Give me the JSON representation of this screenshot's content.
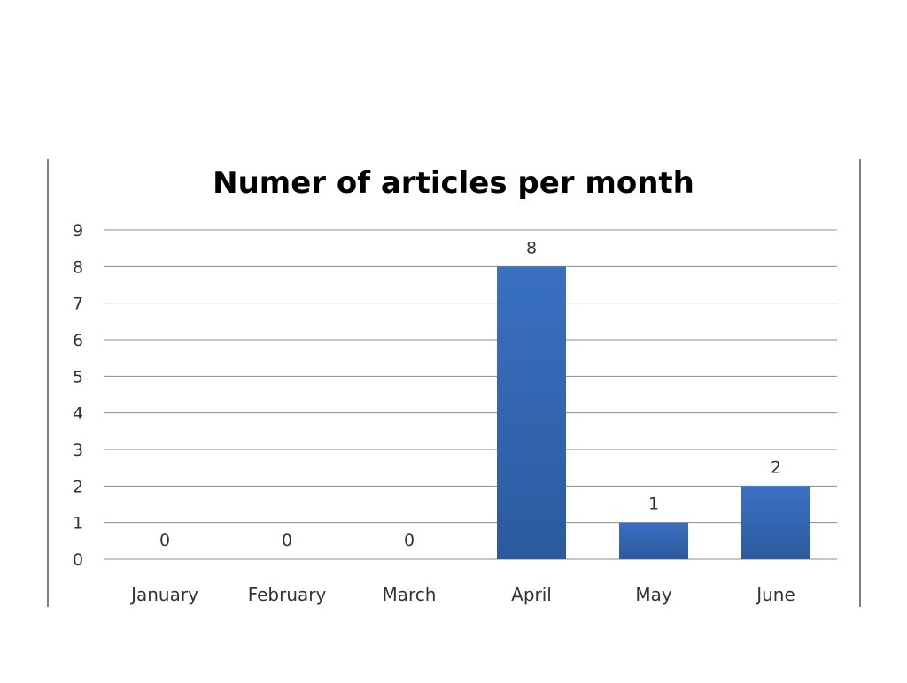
{
  "chart_data": {
    "type": "bar",
    "title": "Numer of articles per month",
    "categories": [
      "January",
      "February",
      "March",
      "April",
      "May",
      "June"
    ],
    "values": [
      0,
      0,
      0,
      8,
      1,
      2
    ],
    "data_labels": [
      "0",
      "0",
      "0",
      "8",
      "1",
      "2"
    ],
    "ylim": [
      0,
      9
    ],
    "yticks": [
      "0",
      "1",
      "2",
      "3",
      "4",
      "5",
      "6",
      "7",
      "8",
      "9"
    ],
    "xlabel": "",
    "ylabel": "",
    "grid": true,
    "legend": "none",
    "bar_color": "#3a70c2",
    "bar_color_dark": "#2c5a9e"
  }
}
